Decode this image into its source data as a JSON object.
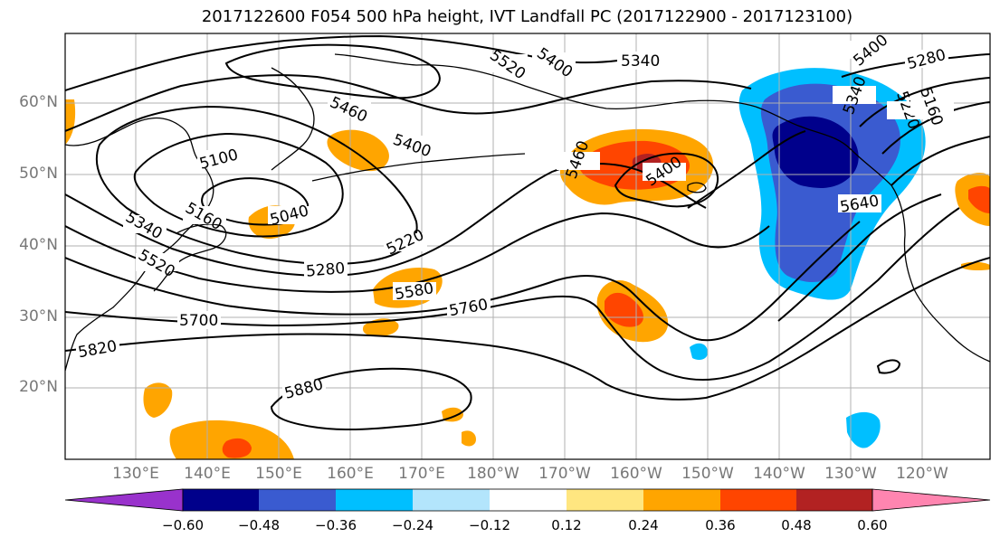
{
  "title": "2017122600 F054 500 hPa height, IVT Landfall PC (2017122900 - 2017123100)",
  "map": {
    "lat_labels": [
      "60°N",
      "50°N",
      "40°N",
      "30°N",
      "20°N"
    ],
    "lon_labels": [
      "130°E",
      "140°E",
      "150°E",
      "160°E",
      "170°E",
      "180°W",
      "170°W",
      "160°W",
      "150°W",
      "140°W",
      "130°W",
      "120°W"
    ],
    "contour_labels": [
      "5520",
      "5400",
      "5340",
      "5460",
      "5400",
      "5100",
      "5040",
      "5160",
      "5340",
      "5520",
      "5220",
      "5280",
      "5580",
      "5700",
      "5760",
      "5820",
      "5880",
      "5460",
      "5400",
      "5640",
      "5400",
      "5280",
      "5340",
      "5220",
      "5160"
    ],
    "colors": {
      "land": "#ffffff",
      "coast": "#000000",
      "grid": "#b0b0b0",
      "contour": "#000000"
    }
  },
  "colorbar": {
    "colors": [
      "#9932cc",
      "#00008b",
      "#3a5bd0",
      "#00bfff",
      "#b3e5fc",
      "#ffffff",
      "#ffe680",
      "#ffa500",
      "#ff4500",
      "#b22222",
      "#ff85b0"
    ],
    "ticks": [
      "−0.60",
      "−0.48",
      "−0.36",
      "−0.24",
      "−0.12",
      "0.12",
      "0.24",
      "0.36",
      "0.48",
      "0.60"
    ]
  }
}
